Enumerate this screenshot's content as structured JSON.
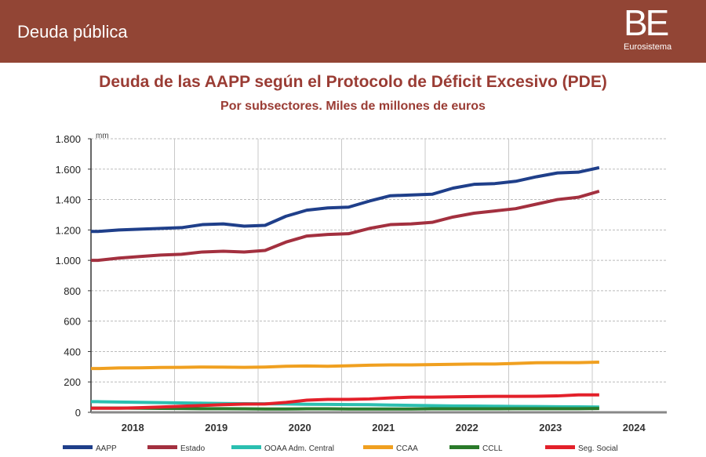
{
  "header": {
    "title": "Deuda pública",
    "logo_text": "BE",
    "logo_sub": "Eurosistema",
    "bg": "#924535"
  },
  "chart_data": {
    "type": "line",
    "title": "Deuda de las AAPP según el Protocolo de Déficit Excesivo (PDE)",
    "subtitle": "Por subsectores. Miles de millones de euros",
    "ylabel": "mm",
    "ylim": [
      0,
      1800
    ],
    "yticks": [
      0,
      200,
      400,
      600,
      800,
      1000,
      1200,
      1400,
      1600,
      1800
    ],
    "ytick_labels": [
      "0",
      "200",
      "400",
      "600",
      "800",
      "1.000",
      "1.200",
      "1.400",
      "1.600",
      "1.800"
    ],
    "xticks": [
      "2018",
      "2019",
      "2020",
      "2021",
      "2022",
      "2023",
      "2024"
    ],
    "xlim": [
      "2018-01",
      "2024-12"
    ],
    "grid": true,
    "legend_position": "bottom",
    "x": [
      "2018Q1",
      "2018Q2",
      "2018Q3",
      "2018Q4",
      "2019Q1",
      "2019Q2",
      "2019Q3",
      "2019Q4",
      "2020Q1",
      "2020Q2",
      "2020Q3",
      "2020Q4",
      "2021Q1",
      "2021Q2",
      "2021Q3",
      "2021Q4",
      "2022Q1",
      "2022Q2",
      "2022Q3",
      "2022Q4",
      "2023Q1",
      "2023Q2",
      "2023Q3",
      "2023Q4",
      "2024Q1"
    ],
    "series": [
      {
        "name": "AAPP",
        "color": "#1f3f8a",
        "values": [
          1190,
          1200,
          1205,
          1210,
          1215,
          1235,
          1240,
          1225,
          1230,
          1290,
          1330,
          1345,
          1350,
          1390,
          1425,
          1430,
          1435,
          1475,
          1500,
          1505,
          1520,
          1550,
          1575,
          1580,
          1610
        ]
      },
      {
        "name": "Estado",
        "color": "#a3303f",
        "values": [
          1000,
          1015,
          1025,
          1035,
          1040,
          1055,
          1060,
          1055,
          1065,
          1120,
          1160,
          1170,
          1175,
          1210,
          1235,
          1240,
          1250,
          1285,
          1310,
          1325,
          1340,
          1370,
          1400,
          1415,
          1455
        ]
      },
      {
        "name": "OOAA Adm. Central",
        "color": "#2bbfb0",
        "values": [
          70,
          68,
          66,
          64,
          62,
          60,
          58,
          57,
          56,
          55,
          53,
          52,
          51,
          50,
          48,
          46,
          44,
          42,
          41,
          40,
          39,
          38,
          37,
          36,
          35
        ]
      },
      {
        "name": "CCAA",
        "color": "#f0a020",
        "values": [
          288,
          292,
          293,
          295,
          296,
          298,
          297,
          296,
          298,
          303,
          305,
          303,
          306,
          310,
          312,
          312,
          314,
          316,
          318,
          318,
          322,
          326,
          327,
          327,
          330
        ]
      },
      {
        "name": "CCLL",
        "color": "#2a7a2a",
        "values": [
          28,
          28,
          27,
          26,
          25,
          24,
          24,
          23,
          22,
          22,
          23,
          23,
          22,
          22,
          22,
          22,
          23,
          23,
          23,
          23,
          24,
          24,
          24,
          24,
          25
        ]
      },
      {
        "name": "Seg. Social",
        "color": "#e3202a",
        "values": [
          27,
          27,
          30,
          35,
          40,
          45,
          50,
          54,
          55,
          65,
          80,
          85,
          85,
          88,
          95,
          100,
          100,
          102,
          104,
          105,
          105,
          106,
          108,
          115,
          115
        ]
      }
    ]
  }
}
